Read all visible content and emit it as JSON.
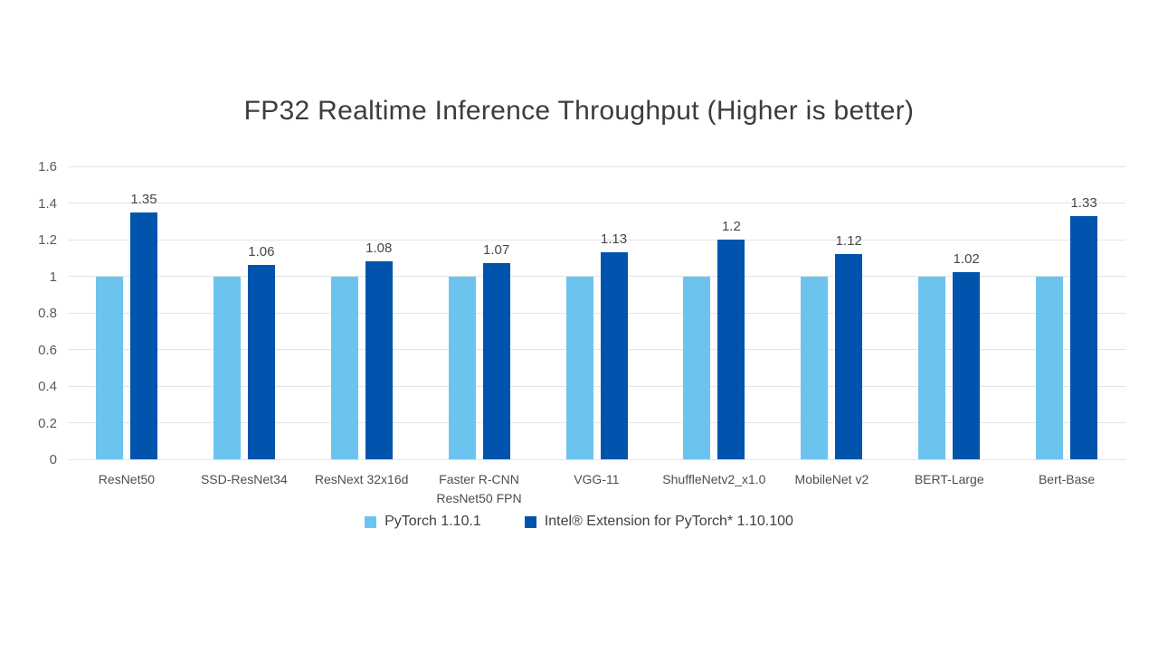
{
  "chart_data": {
    "type": "bar",
    "title": "FP32 Realtime Inference Throughput (Higher is better)",
    "categories": [
      "ResNet50",
      "SSD-ResNet34",
      "ResNext 32x16d",
      "Faster R-CNN ResNet50 FPN",
      "VGG-11",
      "ShuffleNetv2_x1.0",
      "MobileNet v2",
      "BERT-Large",
      "Bert-Base"
    ],
    "series": [
      {
        "id": "pytorch",
        "name": "PyTorch 1.10.1",
        "color": "#6cc4ee",
        "values": [
          1,
          1,
          1,
          1,
          1,
          1,
          1,
          1,
          1
        ],
        "point_labels": [
          "",
          "",
          "",
          "",
          "",
          "",
          "",
          "",
          ""
        ]
      },
      {
        "id": "ipex",
        "name": "Intel® Extension for PyTorch* 1.10.100",
        "color": "#0054ae",
        "values": [
          1.35,
          1.06,
          1.08,
          1.07,
          1.13,
          1.2,
          1.12,
          1.02,
          1.33
        ],
        "point_labels": [
          "1.35",
          "1.06",
          "1.08",
          "1.07",
          "1.13",
          "1.2",
          "1.12",
          "1.02",
          "1.33"
        ]
      }
    ],
    "ylim": [
      0,
      1.6
    ],
    "y_ticks": [
      {
        "value": 0,
        "label": "0"
      },
      {
        "value": 0.2,
        "label": "0.2"
      },
      {
        "value": 0.4,
        "label": "0.4"
      },
      {
        "value": 0.6,
        "label": "0.6"
      },
      {
        "value": 0.8,
        "label": "0.8"
      },
      {
        "value": 1,
        "label": "1"
      },
      {
        "value": 1.2,
        "label": "1.2"
      },
      {
        "value": 1.4,
        "label": "1.4"
      },
      {
        "value": 1.6,
        "label": "1.6"
      }
    ],
    "grid": "horizontal",
    "legend_position": "bottom",
    "xlabel": "",
    "ylabel": ""
  },
  "colors": {
    "background": "#ffffff",
    "gridline": "#e4e4e4",
    "title_text": "#3c3c3c",
    "tick_text": "#5a5a5a",
    "value_label_text": "#474747"
  }
}
